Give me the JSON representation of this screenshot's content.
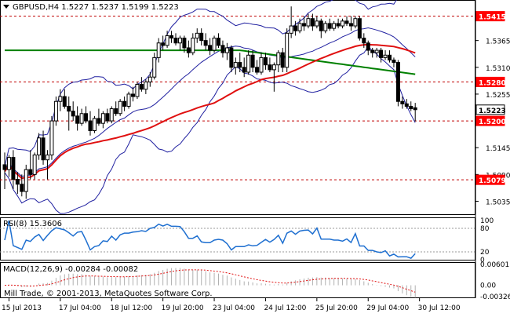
{
  "chart_data": [
    {
      "type": "candlestick",
      "title": "GBPUSD,H4  1.5227 1.5237 1.5199 1.5223",
      "symbol": "GBPUSD,H4",
      "ohlc_header": [
        "1.5227",
        "1.5237",
        "1.5199",
        "1.5223"
      ],
      "y_ticks": [
        "1.5365",
        "1.5310",
        "1.5255",
        "1.5145",
        "1.5090",
        "1.5035"
      ],
      "ylim": [
        1.501,
        1.5445
      ],
      "x_labels": [
        "15 Jul 2013",
        "17 Jul 04:00",
        "18 Jul 12:00",
        "19 Jul 20:00",
        "23 Jul 04:00",
        "24 Jul 12:00",
        "25 Jul 20:00",
        "29 Jul 04:00",
        "30 Jul 12:00"
      ],
      "x_label_positions": [
        1,
        13,
        25,
        37,
        49,
        61,
        73,
        85,
        97
      ],
      "candles": [
        {
          "o": 1.511,
          "h": 1.5135,
          "l": 1.506,
          "c": 1.51
        },
        {
          "o": 1.51,
          "h": 1.513,
          "l": 1.5085,
          "c": 1.5125
        },
        {
          "o": 1.5125,
          "h": 1.514,
          "l": 1.506,
          "c": 1.508
        },
        {
          "o": 1.508,
          "h": 1.5095,
          "l": 1.505,
          "c": 1.507
        },
        {
          "o": 1.507,
          "h": 1.509,
          "l": 1.5045,
          "c": 1.5055
        },
        {
          "o": 1.5055,
          "h": 1.511,
          "l": 1.504,
          "c": 1.51
        },
        {
          "o": 1.51,
          "h": 1.514,
          "l": 1.508,
          "c": 1.509
        },
        {
          "o": 1.509,
          "h": 1.5135,
          "l": 1.508,
          "c": 1.513
        },
        {
          "o": 1.513,
          "h": 1.5175,
          "l": 1.512,
          "c": 1.5165
        },
        {
          "o": 1.5165,
          "h": 1.518,
          "l": 1.511,
          "c": 1.512
        },
        {
          "o": 1.512,
          "h": 1.514,
          "l": 1.508,
          "c": 1.513
        },
        {
          "o": 1.513,
          "h": 1.521,
          "l": 1.512,
          "c": 1.52
        },
        {
          "o": 1.52,
          "h": 1.525,
          "l": 1.519,
          "c": 1.524
        },
        {
          "o": 1.524,
          "h": 1.5265,
          "l": 1.522,
          "c": 1.525
        },
        {
          "o": 1.525,
          "h": 1.5265,
          "l": 1.5225,
          "c": 1.523
        },
        {
          "o": 1.523,
          "h": 1.525,
          "l": 1.518,
          "c": 1.522
        },
        {
          "o": 1.522,
          "h": 1.524,
          "l": 1.52,
          "c": 1.521
        },
        {
          "o": 1.521,
          "h": 1.523,
          "l": 1.518,
          "c": 1.5195
        },
        {
          "o": 1.5195,
          "h": 1.5225,
          "l": 1.519,
          "c": 1.5215
        },
        {
          "o": 1.5215,
          "h": 1.523,
          "l": 1.5195,
          "c": 1.52
        },
        {
          "o": 1.52,
          "h": 1.522,
          "l": 1.517,
          "c": 1.518
        },
        {
          "o": 1.518,
          "h": 1.521,
          "l": 1.5175,
          "c": 1.5205
        },
        {
          "o": 1.5205,
          "h": 1.5225,
          "l": 1.519,
          "c": 1.5195
        },
        {
          "o": 1.5195,
          "h": 1.522,
          "l": 1.5185,
          "c": 1.5215
        },
        {
          "o": 1.5215,
          "h": 1.5225,
          "l": 1.5195,
          "c": 1.52
        },
        {
          "o": 1.52,
          "h": 1.523,
          "l": 1.5195,
          "c": 1.5225
        },
        {
          "o": 1.5225,
          "h": 1.524,
          "l": 1.521,
          "c": 1.5215
        },
        {
          "o": 1.5215,
          "h": 1.5245,
          "l": 1.521,
          "c": 1.524
        },
        {
          "o": 1.524,
          "h": 1.525,
          "l": 1.522,
          "c": 1.523
        },
        {
          "o": 1.523,
          "h": 1.526,
          "l": 1.5225,
          "c": 1.5255
        },
        {
          "o": 1.5255,
          "h": 1.527,
          "l": 1.524,
          "c": 1.525
        },
        {
          "o": 1.525,
          "h": 1.528,
          "l": 1.5245,
          "c": 1.5275
        },
        {
          "o": 1.5275,
          "h": 1.529,
          "l": 1.526,
          "c": 1.5265
        },
        {
          "o": 1.5265,
          "h": 1.5285,
          "l": 1.5255,
          "c": 1.528
        },
        {
          "o": 1.528,
          "h": 1.53,
          "l": 1.527,
          "c": 1.529
        },
        {
          "o": 1.529,
          "h": 1.534,
          "l": 1.5285,
          "c": 1.533
        },
        {
          "o": 1.533,
          "h": 1.537,
          "l": 1.532,
          "c": 1.536
        },
        {
          "o": 1.536,
          "h": 1.5375,
          "l": 1.5345,
          "c": 1.5355
        },
        {
          "o": 1.5355,
          "h": 1.5385,
          "l": 1.535,
          "c": 1.5375
        },
        {
          "o": 1.5375,
          "h": 1.5385,
          "l": 1.536,
          "c": 1.537
        },
        {
          "o": 1.537,
          "h": 1.538,
          "l": 1.5355,
          "c": 1.536
        },
        {
          "o": 1.536,
          "h": 1.5375,
          "l": 1.5345,
          "c": 1.537
        },
        {
          "o": 1.537,
          "h": 1.5375,
          "l": 1.534,
          "c": 1.535
        },
        {
          "o": 1.535,
          "h": 1.5365,
          "l": 1.533,
          "c": 1.534
        },
        {
          "o": 1.534,
          "h": 1.538,
          "l": 1.5335,
          "c": 1.537
        },
        {
          "o": 1.537,
          "h": 1.539,
          "l": 1.536,
          "c": 1.538
        },
        {
          "o": 1.538,
          "h": 1.539,
          "l": 1.5355,
          "c": 1.5365
        },
        {
          "o": 1.5365,
          "h": 1.538,
          "l": 1.5345,
          "c": 1.5355
        },
        {
          "o": 1.5355,
          "h": 1.537,
          "l": 1.5335,
          "c": 1.5345
        },
        {
          "o": 1.5345,
          "h": 1.5375,
          "l": 1.534,
          "c": 1.537
        },
        {
          "o": 1.537,
          "h": 1.538,
          "l": 1.535,
          "c": 1.5355
        },
        {
          "o": 1.5355,
          "h": 1.5365,
          "l": 1.533,
          "c": 1.534
        },
        {
          "o": 1.534,
          "h": 1.536,
          "l": 1.5325,
          "c": 1.535
        },
        {
          "o": 1.535,
          "h": 1.5355,
          "l": 1.53,
          "c": 1.531
        },
        {
          "o": 1.531,
          "h": 1.533,
          "l": 1.5295,
          "c": 1.532
        },
        {
          "o": 1.532,
          "h": 1.534,
          "l": 1.53,
          "c": 1.531
        },
        {
          "o": 1.531,
          "h": 1.533,
          "l": 1.529,
          "c": 1.53
        },
        {
          "o": 1.53,
          "h": 1.5345,
          "l": 1.5295,
          "c": 1.5335
        },
        {
          "o": 1.5335,
          "h": 1.5345,
          "l": 1.53,
          "c": 1.531
        },
        {
          "o": 1.531,
          "h": 1.5325,
          "l": 1.5295,
          "c": 1.53
        },
        {
          "o": 1.53,
          "h": 1.534,
          "l": 1.5295,
          "c": 1.533
        },
        {
          "o": 1.533,
          "h": 1.534,
          "l": 1.5305,
          "c": 1.5315
        },
        {
          "o": 1.5315,
          "h": 1.533,
          "l": 1.53,
          "c": 1.5305
        },
        {
          "o": 1.5305,
          "h": 1.532,
          "l": 1.526,
          "c": 1.5315
        },
        {
          "o": 1.5315,
          "h": 1.5345,
          "l": 1.53,
          "c": 1.534
        },
        {
          "o": 1.534,
          "h": 1.535,
          "l": 1.53,
          "c": 1.531
        },
        {
          "o": 1.531,
          "h": 1.539,
          "l": 1.53,
          "c": 1.538
        },
        {
          "o": 1.538,
          "h": 1.5435,
          "l": 1.537,
          "c": 1.5395
        },
        {
          "o": 1.5395,
          "h": 1.5405,
          "l": 1.5375,
          "c": 1.5385
        },
        {
          "o": 1.5385,
          "h": 1.541,
          "l": 1.538,
          "c": 1.54
        },
        {
          "o": 1.54,
          "h": 1.5415,
          "l": 1.5385,
          "c": 1.5395
        },
        {
          "o": 1.5395,
          "h": 1.542,
          "l": 1.539,
          "c": 1.541
        },
        {
          "o": 1.541,
          "h": 1.542,
          "l": 1.5385,
          "c": 1.5395
        },
        {
          "o": 1.5395,
          "h": 1.5415,
          "l": 1.539,
          "c": 1.5405
        },
        {
          "o": 1.5405,
          "h": 1.541,
          "l": 1.537,
          "c": 1.5385
        },
        {
          "o": 1.5385,
          "h": 1.5405,
          "l": 1.538,
          "c": 1.54
        },
        {
          "o": 1.54,
          "h": 1.541,
          "l": 1.5385,
          "c": 1.539
        },
        {
          "o": 1.539,
          "h": 1.5405,
          "l": 1.5385,
          "c": 1.54
        },
        {
          "o": 1.54,
          "h": 1.541,
          "l": 1.539,
          "c": 1.5395
        },
        {
          "o": 1.5395,
          "h": 1.541,
          "l": 1.539,
          "c": 1.5405
        },
        {
          "o": 1.5405,
          "h": 1.5415,
          "l": 1.5395,
          "c": 1.54
        },
        {
          "o": 1.54,
          "h": 1.5415,
          "l": 1.5385,
          "c": 1.5395
        },
        {
          "o": 1.5395,
          "h": 1.5415,
          "l": 1.539,
          "c": 1.541
        },
        {
          "o": 1.541,
          "h": 1.5415,
          "l": 1.5365,
          "c": 1.537
        },
        {
          "o": 1.537,
          "h": 1.538,
          "l": 1.535,
          "c": 1.536
        },
        {
          "o": 1.536,
          "h": 1.5365,
          "l": 1.5335,
          "c": 1.5345
        },
        {
          "o": 1.5345,
          "h": 1.535,
          "l": 1.533,
          "c": 1.534
        },
        {
          "o": 1.534,
          "h": 1.535,
          "l": 1.533,
          "c": 1.5345
        },
        {
          "o": 1.5345,
          "h": 1.535,
          "l": 1.532,
          "c": 1.533
        },
        {
          "o": 1.533,
          "h": 1.5345,
          "l": 1.5325,
          "c": 1.5335
        },
        {
          "o": 1.5335,
          "h": 1.5345,
          "l": 1.532,
          "c": 1.5325
        },
        {
          "o": 1.5325,
          "h": 1.533,
          "l": 1.531,
          "c": 1.532
        },
        {
          "o": 1.532,
          "h": 1.5325,
          "l": 1.523,
          "c": 1.524
        },
        {
          "o": 1.524,
          "h": 1.525,
          "l": 1.5225,
          "c": 1.5235
        },
        {
          "o": 1.5235,
          "h": 1.5245,
          "l": 1.5225,
          "c": 1.523
        },
        {
          "o": 1.523,
          "h": 1.524,
          "l": 1.522,
          "c": 1.5225
        },
        {
          "o": 1.5227,
          "h": 1.5237,
          "l": 1.5199,
          "c": 1.5223
        }
      ],
      "levels": [
        {
          "value": 1.5415,
          "label": "1.5415"
        },
        {
          "value": 1.528,
          "label": "1.5280"
        },
        {
          "value": 1.52,
          "label": "1.5200"
        },
        {
          "value": 1.5079,
          "label": "1.5079"
        }
      ],
      "current_price": {
        "value": 1.5223,
        "label": "1.5223"
      },
      "colors": {
        "bollinger": "#2020a0",
        "ma_fast": "#008000",
        "ma_slow": "#e01010",
        "levels": "#c00000",
        "candle": "#000000",
        "label_bg": "#ff0000"
      }
    },
    {
      "type": "line",
      "title": "RSI(8) 15.3606",
      "ylim": [
        0,
        100
      ],
      "y_ticks": [
        "100",
        "80",
        "20",
        "0"
      ],
      "levels": [
        80,
        20
      ],
      "color": "#1e6fd0"
    },
    {
      "type": "histogram",
      "title": "MACD(12,26,9) -0.00284 -0.00082",
      "ylim": [
        -0.00326,
        0.00601
      ],
      "y_ticks": [
        "0.00601",
        "0.00",
        "-0.00326"
      ],
      "colors": {
        "histogram": "#b0b0b0",
        "signal": "#e01010"
      }
    }
  ],
  "footer": {
    "copyright": "Mill Trade, © 2001-2013, MetaQuotes Software Corp."
  }
}
